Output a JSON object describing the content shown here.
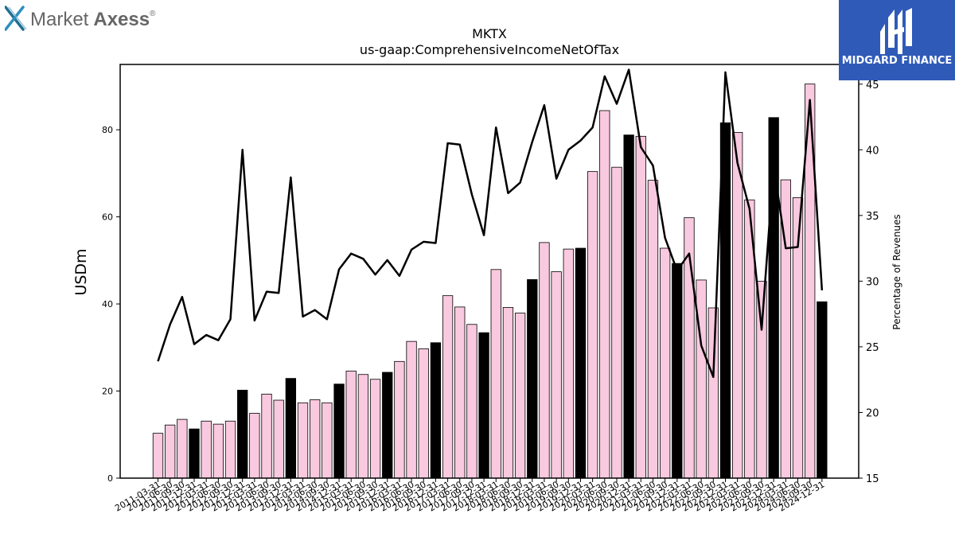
{
  "branding": {
    "left_logo_name": "Market Axess",
    "left_logo_name_a": "Market",
    "left_logo_name_b": "Axess",
    "left_logo_reg": "®",
    "right_logo_name": "MIDGARD FINANCE"
  },
  "colors": {
    "bar_default": "#f9c9df",
    "bar_q4": "#000000",
    "line": "#000000",
    "brand_blue": "#2f5ab8",
    "left_logo_x": "#1f6f93",
    "left_logo_text": "#666666"
  },
  "chart_data": {
    "type": "bar",
    "title": "MKTX",
    "subtitle": "us-gaap:ComprehensiveIncomeNetOfTax",
    "ylabel": "USDm",
    "y2label": "Percentage of Revenues",
    "ylim": [
      0,
      95
    ],
    "y2lim": [
      15,
      46.5
    ],
    "yticks": [
      0,
      20,
      40,
      60,
      80
    ],
    "y2ticks": [
      15,
      20,
      25,
      30,
      35,
      40,
      45
    ],
    "grid": false,
    "categories": [
      "2011-03-31",
      "2011-06-30",
      "2011-09-30",
      "2011-12-31",
      "2012-03-31",
      "2012-06-30",
      "2012-09-30",
      "2012-12-31",
      "2013-03-31",
      "2013-06-30",
      "2013-09-30",
      "2013-12-31",
      "2014-03-31",
      "2014-06-30",
      "2014-09-30",
      "2014-12-31",
      "2015-03-31",
      "2015-06-30",
      "2015-09-30",
      "2015-12-31",
      "2016-03-31",
      "2016-06-30",
      "2016-09-30",
      "2016-12-31",
      "2017-03-31",
      "2017-06-30",
      "2017-09-30",
      "2017-12-31",
      "2018-03-31",
      "2018-06-30",
      "2018-09-30",
      "2018-12-31",
      "2019-03-31",
      "2019-06-30",
      "2019-09-30",
      "2019-12-31",
      "2020-03-31",
      "2020-06-30",
      "2020-09-30",
      "2020-12-31",
      "2021-03-31",
      "2021-06-30",
      "2021-09-30",
      "2021-12-31",
      "2022-03-31",
      "2022-06-30",
      "2022-09-30",
      "2022-12-31",
      "2023-03-31",
      "2023-06-30",
      "2023-09-30",
      "2023-12-31",
      "2024-03-31",
      "2024-06-30",
      "2024-09-30",
      "2024-12-31"
    ],
    "series": [
      {
        "kind": "bar",
        "values": [
          10.3,
          12.2,
          13.5,
          11.3,
          13.1,
          12.4,
          13.1,
          20.2,
          14.9,
          19.3,
          17.9,
          22.9,
          17.3,
          18.0,
          17.3,
          21.6,
          24.6,
          23.8,
          22.7,
          24.3,
          26.8,
          31.4,
          29.7,
          31.1,
          41.9,
          39.3,
          35.3,
          33.4,
          47.9,
          39.2,
          37.9,
          45.6,
          54.1,
          47.4,
          52.6,
          52.8,
          70.4,
          84.4,
          71.4,
          78.8,
          78.5,
          68.4,
          52.8,
          49.3,
          59.8,
          45.5,
          39.1,
          81.6,
          79.4,
          63.9,
          45.2,
          82.8,
          68.5,
          64.4,
          90.5,
          40.5
        ]
      },
      {
        "kind": "line",
        "axis": "right",
        "values": [
          23.9,
          26.7,
          28.8,
          25.2,
          25.9,
          25.5,
          27.1,
          40.0,
          27.0,
          29.2,
          29.1,
          37.9,
          27.3,
          27.8,
          27.1,
          30.9,
          32.1,
          31.7,
          30.5,
          31.6,
          30.4,
          32.4,
          33.0,
          32.9,
          40.5,
          40.4,
          36.6,
          33.5,
          41.7,
          36.7,
          37.5,
          40.6,
          43.4,
          37.8,
          40.0,
          40.7,
          41.7,
          45.6,
          43.5,
          46.1,
          40.2,
          38.8,
          33.3,
          30.8,
          32.1,
          25.1,
          22.7,
          45.9,
          39.0,
          35.5,
          26.3,
          38.8,
          32.5,
          32.6,
          43.8,
          29.3
        ]
      }
    ]
  }
}
